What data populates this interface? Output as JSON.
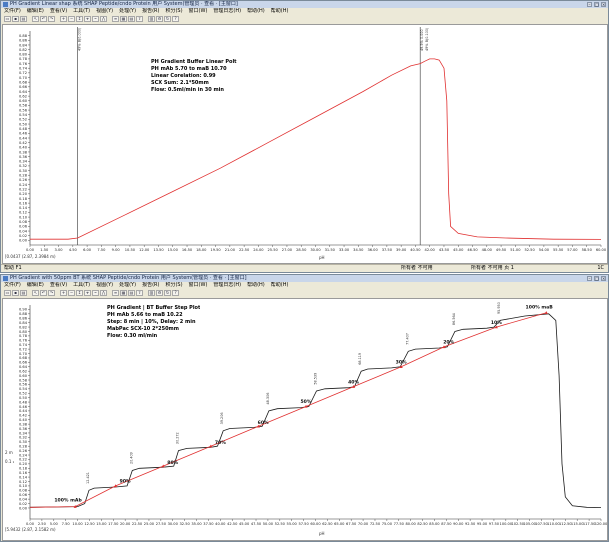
{
  "top_window": {
    "title": "PH Gradient Linear shap 系统 SHAP Peptide/cndo Protein 用户 System(管理员 · 查看 · [主窗口]",
    "menu": [
      "文件(F)",
      "编辑(E)",
      "查看(V)",
      "工具(T)",
      "视图(Y)",
      "处理(Y)",
      "报告(R)",
      "积分(S)",
      "窗口(W)",
      "管理日志(H)",
      "帮助(H)",
      "帮助(H)"
    ],
    "status_left": "帮助 F1",
    "status_mid": "所有者 不可用",
    "status_mid2": "所有者 不可用 页 1",
    "status_right": "1C",
    "coord": "[0.0437 (2.87, 2.3984 m)",
    "axis_unit": "pH",
    "peak_label_1": "49% B(0.000)",
    "peak_label_2": "49.5% 0.000",
    "peak_label_3": "49% B(0.100)",
    "side_label": "pH",
    "annotation": {
      "l1": "PH Gradient Buffer Linear Polt",
      "l2": "PH mAb 5.70 to maB 10.70",
      "l3": "Linear Corelation: 0.99",
      "l4": "SCX Sum: 2.1*50mm",
      "l5": "Flow: 0.5ml/min in 30 min"
    }
  },
  "bottom_window": {
    "title": "PH Gradient with 50ppm BT 系统 SHAP Peptide/cndo Protein 用户 System(管理员 · 查看 · [主窗口]",
    "menu": [
      "文件(F)",
      "编辑(E)",
      "查看(V)",
      "工具(T)",
      "视图(Y)",
      "处理(Y)",
      "报告(R)",
      "积分(S)",
      "窗口(W)",
      "管理日志(H)",
      "帮助(H)",
      "帮助(H)"
    ],
    "coord": "[5.9432 (2.87, 2.1582 m)",
    "axis_unit": "pH",
    "side_label": "pH",
    "ovl_left": "2 m",
    "ovl_left2": "0.1 ₁",
    "annotation": {
      "l1": "PH Gradient | BT Buffer Step Plot",
      "l2": "PH mAb 5.66 to maB 10.22",
      "l3": "Step: 8 min | 10%, Delay: 2 min",
      "l4": "MabPac SCX-10 2*250mm",
      "l5": "Flow: 0.30 ml/min"
    }
  },
  "chart_data": [
    {
      "type": "line",
      "title": "PH Gradient Buffer Linear Polt",
      "xlabel": "",
      "ylabel": "",
      "xlim": [
        0,
        60
      ],
      "ylim": [
        -0.02,
        0.9
      ],
      "grid": false,
      "x_ticks": [
        "0.00",
        "1.50",
        "3.00",
        "4.50",
        "6.00",
        "7.50",
        "9.00",
        "10.50",
        "12.00",
        "13.50",
        "15.00",
        "16.50",
        "18.00",
        "19.50",
        "21.00",
        "22.50",
        "24.00",
        "25.50",
        "27.00",
        "28.50",
        "30.00",
        "31.50",
        "33.00",
        "34.50",
        "36.00",
        "37.50",
        "39.00",
        "40.50",
        "42.00",
        "43.50",
        "45.00",
        "46.50",
        "48.00",
        "49.50",
        "51.00",
        "52.50",
        "54.00",
        "55.50",
        "57.00",
        "58.50",
        "60.00"
      ],
      "y_ticks": [
        "0.00",
        "0.02",
        "0.04",
        "0.06",
        "0.08",
        "0.10",
        "0.12",
        "0.14",
        "0.16",
        "0.18",
        "0.20",
        "0.22",
        "0.24",
        "0.26",
        "0.28",
        "0.30",
        "0.32",
        "0.34",
        "0.36",
        "0.38",
        "0.40",
        "0.42",
        "0.44",
        "0.46",
        "0.48",
        "0.50",
        "0.52",
        "0.54",
        "0.56",
        "0.58",
        "0.60",
        "0.62",
        "0.64",
        "0.66",
        "0.68",
        "0.70",
        "0.72",
        "0.74",
        "0.76",
        "0.78",
        "0.80",
        "0.82",
        "0.84",
        "0.86",
        "0.88"
      ],
      "markers": [
        {
          "x": 5.0
        },
        {
          "x": 41.0
        }
      ],
      "series": [
        {
          "color": "#e03030",
          "points": [
            [
              0,
              0.005
            ],
            [
              4,
              0.005
            ],
            [
              5,
              0.01
            ],
            [
              10,
              0.11
            ],
            [
              15,
              0.21
            ],
            [
              20,
              0.31
            ],
            [
              25,
              0.42
            ],
            [
              30,
              0.53
            ],
            [
              35,
              0.64
            ],
            [
              38,
              0.71
            ],
            [
              40,
              0.75
            ],
            [
              41,
              0.76
            ],
            [
              41.5,
              0.77
            ],
            [
              42,
              0.78
            ],
            [
              42.5,
              0.78
            ],
            [
              43,
              0.775
            ],
            [
              43.5,
              0.74
            ],
            [
              43.8,
              0.6
            ],
            [
              44.0,
              0.2
            ],
            [
              44.2,
              0.06
            ],
            [
              45,
              0.03
            ],
            [
              47,
              0.015
            ],
            [
              50,
              0.01
            ],
            [
              55,
              0.005
            ],
            [
              60,
              0.004
            ]
          ]
        }
      ]
    },
    {
      "type": "line",
      "title": "PH Gradient | BT Buffer Step Plot",
      "xlabel": "",
      "ylabel": "",
      "xlim": [
        0,
        120
      ],
      "ylim": [
        -0.05,
        0.92
      ],
      "grid": false,
      "x_ticks": [
        "0.00",
        "2.50",
        "5.00",
        "7.50",
        "10.00",
        "12.50",
        "15.00",
        "17.50",
        "20.00",
        "22.50",
        "25.00",
        "27.50",
        "30.00",
        "32.50",
        "35.00",
        "37.50",
        "40.00",
        "42.50",
        "45.00",
        "47.50",
        "50.00",
        "52.50",
        "55.00",
        "57.50",
        "60.00",
        "62.50",
        "65.00",
        "67.50",
        "70.00",
        "72.50",
        "75.00",
        "77.50",
        "80.00",
        "82.50",
        "85.00",
        "87.50",
        "90.00",
        "92.50",
        "95.00",
        "97.50",
        "100.00",
        "102.50",
        "105.00",
        "107.50",
        "110.00",
        "112.50",
        "115.00",
        "117.50",
        "120.00"
      ],
      "y_ticks": [
        "0.00",
        "0.02",
        "0.04",
        "0.06",
        "0.08",
        "0.10",
        "0.12",
        "0.14",
        "0.16",
        "0.18",
        "0.20",
        "0.22",
        "0.24",
        "0.26",
        "0.28",
        "0.30",
        "0.32",
        "0.34",
        "0.36",
        "0.38",
        "0.40",
        "0.42",
        "0.44",
        "0.46",
        "0.48",
        "0.50",
        "0.52",
        "0.54",
        "0.56",
        "0.58",
        "0.60",
        "0.62",
        "0.64",
        "0.66",
        "0.68",
        "0.70",
        "0.72",
        "0.74",
        "0.76",
        "0.78",
        "0.80",
        "0.82",
        "0.84",
        "0.86",
        "0.88",
        "0.90"
      ],
      "step_labels": [
        {
          "text": "100% mAb",
          "x": 8,
          "y": 0.03
        },
        {
          "text": "90%",
          "x": 20,
          "y": 0.115
        },
        {
          "text": "80%",
          "x": 30,
          "y": 0.2
        },
        {
          "text": "70%",
          "x": 40,
          "y": 0.29
        },
        {
          "text": "60%",
          "x": 49,
          "y": 0.38
        },
        {
          "text": "50%",
          "x": 58,
          "y": 0.475
        },
        {
          "text": "40%",
          "x": 68,
          "y": 0.565
        },
        {
          "text": "30%",
          "x": 78,
          "y": 0.655
        },
        {
          "text": "20%",
          "x": 88,
          "y": 0.745
        },
        {
          "text": "10%",
          "x": 98,
          "y": 0.835
        },
        {
          "text": "100% maB",
          "x": 107,
          "y": 0.905
        }
      ],
      "peak_labels": [
        {
          "text": "12.421",
          "x": 12.4,
          "y": 0.1
        },
        {
          "text": "20.409",
          "x": 21.5,
          "y": 0.19
        },
        {
          "text": "30.272",
          "x": 31.2,
          "y": 0.28
        },
        {
          "text": "39.206",
          "x": 40.6,
          "y": 0.37
        },
        {
          "text": "48.306",
          "x": 50.2,
          "y": 0.46
        },
        {
          "text": "58.539",
          "x": 60.2,
          "y": 0.55
        },
        {
          "text": "68.119",
          "x": 69.6,
          "y": 0.64
        },
        {
          "text": "77.407",
          "x": 79.5,
          "y": 0.73
        },
        {
          "text": "86.564",
          "x": 89.3,
          "y": 0.82
        },
        {
          "text": "95.950",
          "x": 98.8,
          "y": 0.87
        }
      ],
      "series": [
        {
          "color": "#1a1a1a",
          "points": [
            [
              0,
              0.003
            ],
            [
              10,
              0.006
            ],
            [
              11.5,
              0.02
            ],
            [
              12.4,
              0.08
            ],
            [
              13.5,
              0.09
            ],
            [
              18,
              0.095
            ],
            [
              20.4,
              0.1
            ],
            [
              21.5,
              0.17
            ],
            [
              23,
              0.18
            ],
            [
              28,
              0.185
            ],
            [
              30.2,
              0.19
            ],
            [
              31.2,
              0.26
            ],
            [
              33,
              0.27
            ],
            [
              38,
              0.275
            ],
            [
              39.4,
              0.28
            ],
            [
              40.6,
              0.35
            ],
            [
              42,
              0.36
            ],
            [
              47,
              0.365
            ],
            [
              48.8,
              0.37
            ],
            [
              50.2,
              0.44
            ],
            [
              52,
              0.45
            ],
            [
              57,
              0.455
            ],
            [
              58.6,
              0.46
            ],
            [
              60.2,
              0.53
            ],
            [
              62,
              0.54
            ],
            [
              67,
              0.545
            ],
            [
              68.2,
              0.55
            ],
            [
              69.6,
              0.62
            ],
            [
              71,
              0.63
            ],
            [
              76,
              0.635
            ],
            [
              77.8,
              0.64
            ],
            [
              79.5,
              0.71
            ],
            [
              81,
              0.72
            ],
            [
              86,
              0.725
            ],
            [
              87.7,
              0.73
            ],
            [
              89.3,
              0.8
            ],
            [
              91,
              0.81
            ],
            [
              96,
              0.815
            ],
            [
              97.5,
              0.82
            ],
            [
              98.8,
              0.85
            ],
            [
              104,
              0.87
            ],
            [
              109,
              0.88
            ],
            [
              110.5,
              0.85
            ],
            [
              111.2,
              0.6
            ],
            [
              111.8,
              0.2
            ],
            [
              112.5,
              0.05
            ],
            [
              114,
              0.01
            ],
            [
              117,
              0.003
            ],
            [
              120,
              0.002
            ]
          ]
        },
        {
          "color": "#e03030",
          "points": [
            [
              0,
              0.003
            ],
            [
              9.5,
              0.006
            ],
            [
              18,
              0.1
            ],
            [
              28,
              0.19
            ],
            [
              38,
              0.28
            ],
            [
              48,
              0.37
            ],
            [
              58,
              0.46
            ],
            [
              68,
              0.55
            ],
            [
              78,
              0.64
            ],
            [
              87,
              0.73
            ],
            [
              98,
              0.82
            ],
            [
              108.5,
              0.885
            ]
          ]
        }
      ]
    }
  ]
}
